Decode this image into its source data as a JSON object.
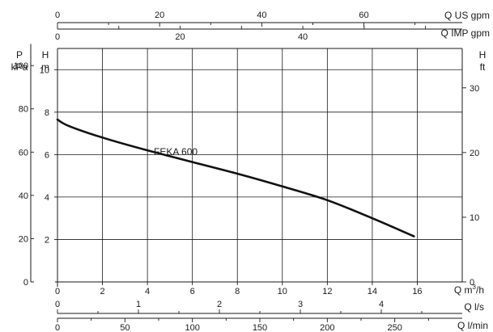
{
  "chart_data": {
    "type": "line",
    "series": [
      {
        "name": "FEKA 600",
        "x": [
          0,
          0.5,
          2,
          4,
          6,
          8,
          10,
          12,
          14,
          15.85
        ],
        "y": [
          7.65,
          7.35,
          6.8,
          6.2,
          5.65,
          5.1,
          4.5,
          3.85,
          3.0,
          2.15
        ]
      }
    ],
    "xlim": [
      0,
      18
    ],
    "ylim": [
      0,
      11
    ],
    "grid": true,
    "axes": {
      "bottom_primary": {
        "label_main": "Q m",
        "label_sup": "3",
        "label_tail": "/h",
        "ticks": [
          0,
          2,
          4,
          6,
          8,
          10,
          12,
          14,
          16
        ],
        "labels": [
          "0",
          "2",
          "4",
          "6",
          "8",
          "10",
          "12",
          "14",
          "16"
        ]
      },
      "bottom_ls": {
        "label": "Q l/s",
        "ticks": [
          0,
          1,
          2,
          3,
          4
        ],
        "labels": [
          "0",
          "1",
          "2",
          "3",
          "4"
        ]
      },
      "bottom_lmin": {
        "label": "Q l/min",
        "ticks": [
          0,
          50,
          100,
          150,
          200,
          250
        ],
        "labels": [
          "0",
          "50",
          "100",
          "150",
          "200",
          "250"
        ]
      },
      "top_us": {
        "label": "Q US gpm",
        "ticks": [
          0,
          20,
          40,
          60
        ],
        "labels": [
          "0",
          "20",
          "40",
          "60"
        ]
      },
      "top_imp": {
        "label": "Q IMP gpm",
        "ticks": [
          0,
          20,
          40
        ],
        "labels": [
          "0",
          "20",
          "40"
        ]
      },
      "left_h": {
        "label_top": "H",
        "label_bottom": "m",
        "ticks": [
          2,
          4,
          6,
          8,
          10
        ],
        "labels": [
          "2",
          "4",
          "6",
          "8",
          "10"
        ]
      },
      "left_kpa": {
        "label_top": "P",
        "label_bottom": "kPa",
        "ticks": [
          0,
          20,
          40,
          60,
          80,
          100
        ],
        "labels": [
          "0",
          "20",
          "40",
          "60",
          "80",
          "100"
        ]
      },
      "right_ft": {
        "label_top": "H",
        "label_bottom": "ft",
        "ticks": [
          0,
          10,
          20,
          30
        ],
        "labels": [
          "0",
          "10",
          "20",
          "30"
        ]
      }
    }
  }
}
